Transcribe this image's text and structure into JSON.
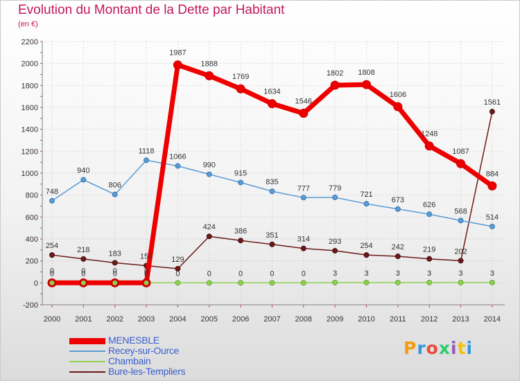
{
  "title": "Evolution du Montant de la Dette par Habitant",
  "subtitle": "(en €)",
  "logo": {
    "text": "Proxiti",
    "colors": [
      "#f39c12",
      "#3498db",
      "#e74c3c",
      "#2ecc71",
      "#9b59b6",
      "#f1c40f",
      "#3498db"
    ]
  },
  "chart_data": {
    "type": "line",
    "title": "Evolution du Montant de la Dette par Habitant",
    "subtitle": "(en €)",
    "x": [
      "2000",
      "2001",
      "2002",
      "2003",
      "2004",
      "2005",
      "2006",
      "2007",
      "2008",
      "2009",
      "2010",
      "2011",
      "2012",
      "2013",
      "2014"
    ],
    "ylim": [
      -200,
      2200
    ],
    "yticks": [
      "-200",
      "0",
      "200",
      "400",
      "600",
      "800",
      "1000",
      "1200",
      "1400",
      "1600",
      "1800",
      "2000",
      "2200"
    ],
    "grid": true,
    "legend": "bottom-left",
    "series": [
      {
        "name": "Bure-les-Templiers",
        "color": "#6b1a1a",
        "values": [
          254,
          218,
          183,
          157,
          129,
          424,
          386,
          351,
          314,
          293,
          254,
          242,
          219,
          202,
          1561
        ],
        "labels": [
          "254",
          "218",
          "183",
          "157",
          "129",
          "424",
          "386",
          "351",
          "314",
          "293",
          "254",
          "242",
          "219",
          "202",
          "1561"
        ]
      },
      {
        "name": "Recey-sur-Ource",
        "color": "#5b9bd5",
        "values": [
          748,
          940,
          806,
          1118,
          1066,
          990,
          915,
          835,
          777,
          779,
          721,
          673,
          626,
          568,
          514
        ],
        "labels": [
          "748",
          "940",
          "806",
          "1118",
          "1066",
          "990",
          "915",
          "835",
          "777",
          "779",
          "721",
          "673",
          "626",
          "568",
          "514"
        ]
      },
      {
        "name": "Chambain",
        "color": "#8fd14f",
        "values": [
          0,
          0,
          0,
          0,
          0,
          0,
          0,
          0,
          0,
          3,
          3,
          3,
          3,
          3,
          3
        ],
        "labels": [
          "0",
          "0",
          "0",
          "0",
          "0",
          "0",
          "0",
          "0",
          "0",
          "3",
          "3",
          "3",
          "3",
          "3",
          "3"
        ]
      },
      {
        "name": "MENESBLE",
        "color": "#ee0000",
        "values": [
          0,
          0,
          0,
          0,
          1987,
          1888,
          1769,
          1634,
          1546,
          1802,
          1808,
          1606,
          1248,
          1087,
          884
        ],
        "labels": [
          "0",
          "0",
          "0",
          "0",
          "1987",
          "1888",
          "1769",
          "1634",
          "1546",
          "1802",
          "1808",
          "1606",
          "1248",
          "1087",
          "884"
        ]
      }
    ],
    "legend_order": [
      "MENESBLE",
      "Recey-sur-Ource",
      "Chambain",
      "Bure-les-Templiers"
    ]
  }
}
